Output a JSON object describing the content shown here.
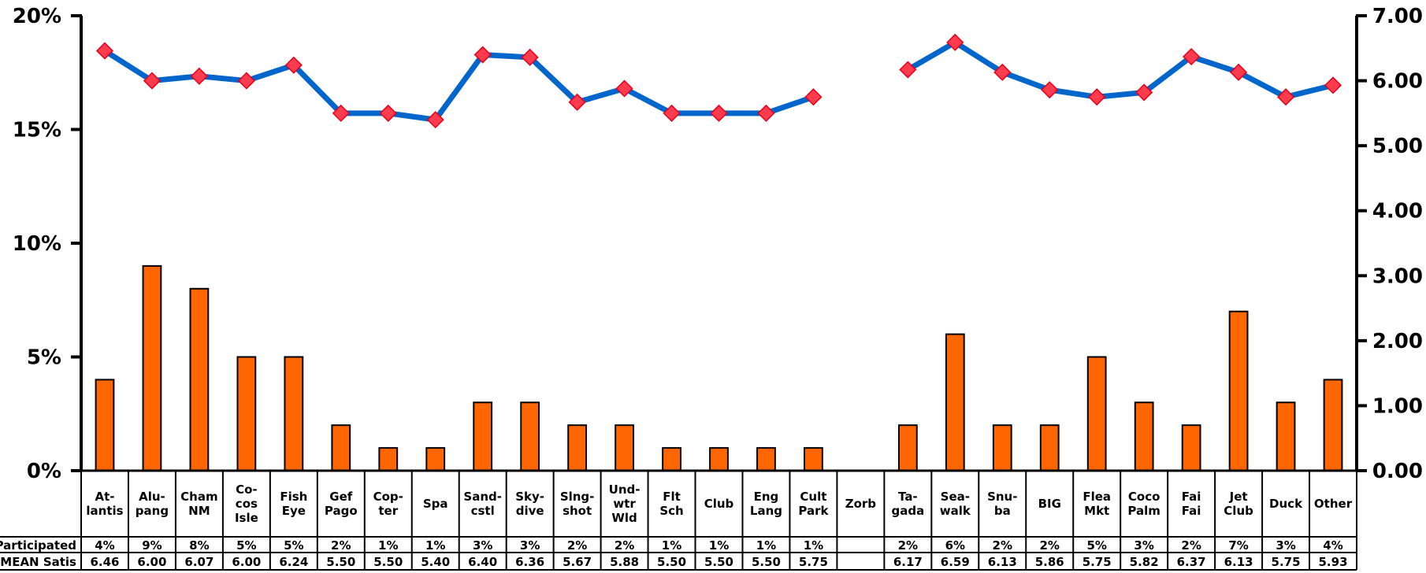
{
  "chart_data": {
    "type": "bar",
    "categories": [
      [
        "At-",
        "lantis"
      ],
      [
        "Alu-",
        "pang"
      ],
      [
        "Cham",
        "NM"
      ],
      [
        "Co-",
        "cos",
        "Isle"
      ],
      [
        "Fish",
        "Eye"
      ],
      [
        "Gef",
        "Pago"
      ],
      [
        "Cop-",
        "ter"
      ],
      [
        "Spa"
      ],
      [
        "Sand-",
        "cstl"
      ],
      [
        "Sky-",
        "dive"
      ],
      [
        "Slng-",
        "shot"
      ],
      [
        "Und-",
        "wtr",
        "Wld"
      ],
      [
        "Flt",
        "Sch"
      ],
      [
        "Club"
      ],
      [
        "Eng",
        "Lang"
      ],
      [
        "Cult",
        "Park"
      ],
      [
        "Zorb"
      ],
      [
        "Ta-",
        "gada"
      ],
      [
        "Sea-",
        "walk"
      ],
      [
        "Snu-",
        "ba"
      ],
      [
        "BIG"
      ],
      [
        "Flea",
        "Mkt"
      ],
      [
        "Coco",
        "Palm"
      ],
      [
        "Fai",
        "Fai"
      ],
      [
        "Jet",
        "Club"
      ],
      [
        "Duck"
      ],
      [
        "Other"
      ]
    ],
    "series": [
      {
        "name": "Participated",
        "kind": "bar",
        "axis": "left",
        "color": "#ff6600",
        "values": [
          4,
          9,
          8,
          5,
          5,
          2,
          1,
          1,
          3,
          3,
          2,
          2,
          1,
          1,
          1,
          1,
          null,
          2,
          6,
          2,
          2,
          5,
          3,
          2,
          7,
          3,
          4
        ],
        "labels": [
          "4%",
          "9%",
          "8%",
          "5%",
          "5%",
          "2%",
          "1%",
          "1%",
          "3%",
          "3%",
          "2%",
          "2%",
          "1%",
          "1%",
          "1%",
          "1%",
          "",
          "2%",
          "6%",
          "2%",
          "2%",
          "5%",
          "3%",
          "2%",
          "7%",
          "3%",
          "4%"
        ]
      },
      {
        "name": "MEAN Satis",
        "kind": "line",
        "axis": "right",
        "color": "#0066cc",
        "marker_color": "#ff3b4e",
        "values": [
          6.46,
          6.0,
          6.07,
          6.0,
          6.24,
          5.5,
          5.5,
          5.4,
          6.4,
          6.36,
          5.67,
          5.88,
          5.5,
          5.5,
          5.5,
          5.75,
          null,
          6.17,
          6.59,
          6.13,
          5.86,
          5.75,
          5.82,
          6.37,
          6.13,
          5.75,
          5.93
        ],
        "labels": [
          "6.46",
          "6.00",
          "6.07",
          "6.00",
          "6.24",
          "5.50",
          "5.50",
          "5.40",
          "6.40",
          "6.36",
          "5.67",
          "5.88",
          "5.50",
          "5.50",
          "5.50",
          "5.75",
          "",
          "6.17",
          "6.59",
          "6.13",
          "5.86",
          "5.75",
          "5.82",
          "6.37",
          "6.13",
          "5.75",
          "5.93"
        ]
      }
    ],
    "y_left": {
      "min": 0,
      "max": 20,
      "ticks": [
        0,
        5,
        10,
        15,
        20
      ],
      "tick_labels": [
        "0%",
        "5%",
        "10%",
        "15%",
        "20%"
      ]
    },
    "y_right": {
      "min": 0,
      "max": 7,
      "ticks": [
        0,
        1,
        2,
        3,
        4,
        5,
        6,
        7
      ],
      "tick_labels": [
        "0.00",
        "1.00",
        "2.00",
        "3.00",
        "4.00",
        "5.00",
        "6.00",
        "7.00"
      ]
    },
    "legend": "none",
    "grid": false
  }
}
